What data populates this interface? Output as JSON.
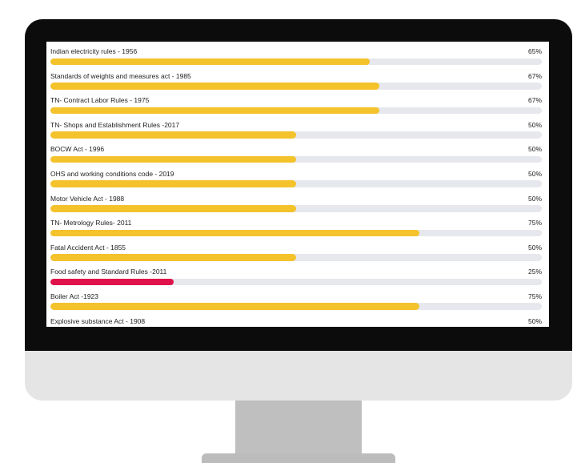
{
  "colors": {
    "bar_default": "#f4c22b",
    "bar_low": "#e0124b",
    "track": "#e6e8ed",
    "bezel": "#0c0c0c",
    "chin": "#e5e5e5"
  },
  "compliance": {
    "items": [
      {
        "label": "Indian electricity rules - 1956",
        "percent_label": "65%",
        "value": 65,
        "color": "#f4c22b"
      },
      {
        "label": "Standards of weights and measures act - 1985",
        "percent_label": "67%",
        "value": 67,
        "color": "#f4c22b"
      },
      {
        "label": "TN- Contract Labor Rules - 1975",
        "percent_label": "67%",
        "value": 67,
        "color": "#f4c22b"
      },
      {
        "label": "TN- Shops and Establishment Rules -2017",
        "percent_label": "50%",
        "value": 50,
        "color": "#f4c22b"
      },
      {
        "label": "BOCW Act - 1996",
        "percent_label": "50%",
        "value": 50,
        "color": "#f4c22b"
      },
      {
        "label": "OHS and working conditions code - 2019",
        "percent_label": "50%",
        "value": 50,
        "color": "#f4c22b"
      },
      {
        "label": "Motor Vehicle Act - 1988",
        "percent_label": "50%",
        "value": 50,
        "color": "#f4c22b"
      },
      {
        "label": "TN- Metrology Rules- 2011",
        "percent_label": "75%",
        "value": 75,
        "color": "#f4c22b"
      },
      {
        "label": "Fatal Accident Act - 1855",
        "percent_label": "50%",
        "value": 50,
        "color": "#f4c22b"
      },
      {
        "label": "Food safety and Standard Rules -2011",
        "percent_label": "25%",
        "value": 25,
        "color": "#e0124b"
      },
      {
        "label": "Boiler Act -1923",
        "percent_label": "75%",
        "value": 75,
        "color": "#f4c22b"
      },
      {
        "label": "Explosive substance Act - 1908",
        "percent_label": "50%",
        "value": 50,
        "color": "#f4c22b"
      }
    ]
  }
}
